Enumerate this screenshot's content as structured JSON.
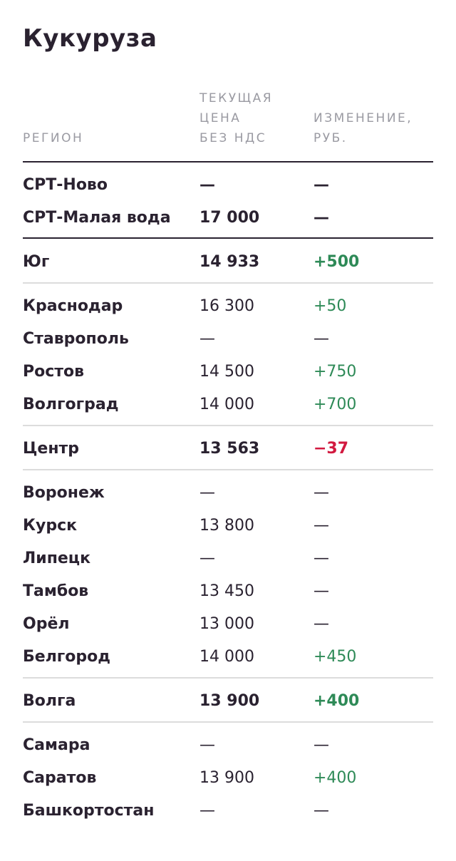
{
  "title": "Кукуруза",
  "headers": {
    "region": "РЕГИОН",
    "price": "ТЕКУЩАЯ\nЦЕНА\nБЕЗ НДС",
    "change": "ИЗМЕНЕНИЕ,\nРУБ."
  },
  "colors": {
    "text": "#2a2230",
    "header": "#9a9aa2",
    "positive": "#2e8a57",
    "negative": "#d2193f"
  },
  "rows": [
    {
      "name": "СРТ-Ново",
      "price": "—",
      "change": "—",
      "bold": true,
      "trend": "none"
    },
    {
      "name": "СРТ-Малая вода",
      "price": "17 000",
      "change": "—",
      "bold": true,
      "trend": "none"
    },
    {
      "name": "Юг",
      "price": "14 933",
      "change": "+500",
      "bold": true,
      "trend": "up"
    },
    {
      "name": "Краснодар",
      "price": "16 300",
      "change": "+50",
      "bold": false,
      "trend": "up"
    },
    {
      "name": "Ставрополь",
      "price": "—",
      "change": "—",
      "bold": false,
      "trend": "none"
    },
    {
      "name": "Ростов",
      "price": "14 500",
      "change": "+750",
      "bold": false,
      "trend": "up"
    },
    {
      "name": "Волгоград",
      "price": "14 000",
      "change": "+700",
      "bold": false,
      "trend": "up"
    },
    {
      "name": "Центр",
      "price": "13 563",
      "change": "−37",
      "bold": true,
      "trend": "down"
    },
    {
      "name": "Воронеж",
      "price": "—",
      "change": "—",
      "bold": false,
      "trend": "none"
    },
    {
      "name": "Курск",
      "price": "13 800",
      "change": "—",
      "bold": false,
      "trend": "none"
    },
    {
      "name": "Липецк",
      "price": "—",
      "change": "—",
      "bold": false,
      "trend": "none"
    },
    {
      "name": "Тамбов",
      "price": "13 450",
      "change": "—",
      "bold": false,
      "trend": "none"
    },
    {
      "name": "Орёл",
      "price": "13 000",
      "change": "—",
      "bold": false,
      "trend": "none"
    },
    {
      "name": "Белгород",
      "price": "14 000",
      "change": "+450",
      "bold": false,
      "trend": "up"
    },
    {
      "name": "Волга",
      "price": "13 900",
      "change": "+400",
      "bold": true,
      "trend": "up"
    },
    {
      "name": "Самара",
      "price": "—",
      "change": "—",
      "bold": false,
      "trend": "none"
    },
    {
      "name": "Саратов",
      "price": "13 900",
      "change": "+400",
      "bold": false,
      "trend": "up"
    },
    {
      "name": "Башкортостан",
      "price": "—",
      "change": "—",
      "bold": false,
      "trend": "none"
    }
  ]
}
